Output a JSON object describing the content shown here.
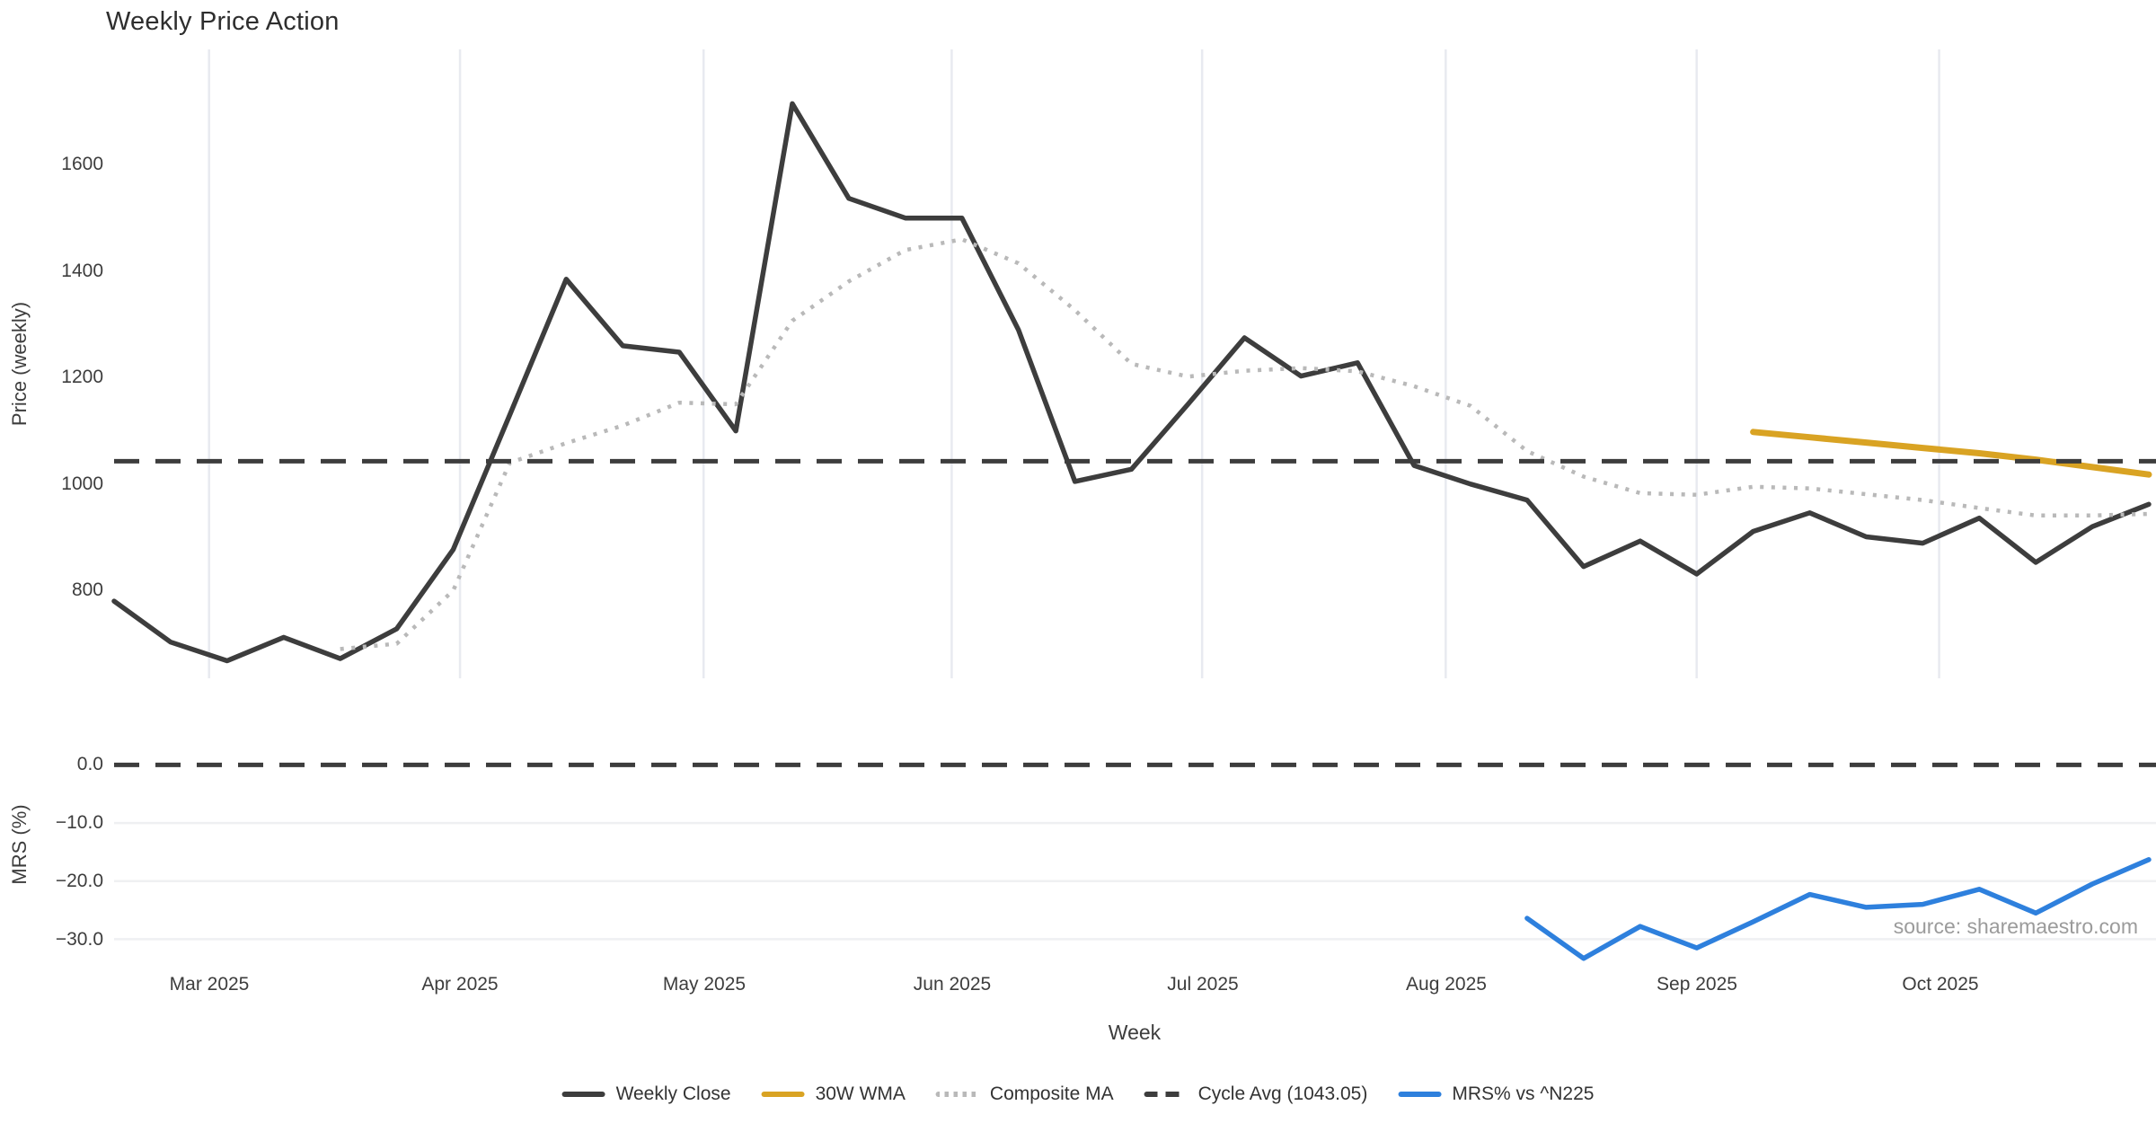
{
  "title": "Weekly Price Action",
  "source_note": "source: sharemaestro.com",
  "axis_titles": {
    "price": "Price (weekly)",
    "mrs": "MRS (%)",
    "x": "Week"
  },
  "price_ticks": [
    "1600",
    "1400",
    "1200",
    "1000",
    "800"
  ],
  "mrs_ticks": [
    "0.0",
    "−10.0",
    "−20.0",
    "−30.0"
  ],
  "month_ticks": [
    "Mar 2025",
    "Apr 2025",
    "May 2025",
    "Jun 2025",
    "Jul 2025",
    "Aug 2025",
    "Sep 2025",
    "Oct 2025"
  ],
  "legend": {
    "items": [
      {
        "label": "Weekly Close",
        "color": "#3d3d3d",
        "style": "solid"
      },
      {
        "label": "30W WMA",
        "color": "#d9a323",
        "style": "solid"
      },
      {
        "label": "Composite MA",
        "color": "#b9b9b9",
        "style": "dotted"
      },
      {
        "label": "Cycle Avg (1043.05)",
        "color": "#3d3d3d",
        "style": "dashed"
      },
      {
        "label": "MRS% vs ^N225",
        "color": "#2e80dd",
        "style": "solid"
      }
    ]
  },
  "colors": {
    "weekly_close": "#3d3d3d",
    "wma30": "#d9a323",
    "composite_ma": "#b9b9b9",
    "cycle_avg": "#3d3d3d",
    "mrs": "#2e80dd",
    "vgrid": "#e8eaf0",
    "hgrid": "#eff0f2",
    "text": "#3d3d3d",
    "source_text": "#9b9b9b"
  },
  "chart_data": [
    {
      "type": "line",
      "panel": "price",
      "ylabel": "Price (weekly)",
      "x_unit": "week_index",
      "n_weeks": 37,
      "ylim": [
        635,
        1817
      ],
      "yticks": [
        800,
        1000,
        1200,
        1400,
        1600
      ],
      "month_ticks": [
        {
          "label": "Mar 2025",
          "week": 1.68
        },
        {
          "label": "Apr 2025",
          "week": 6.12
        },
        {
          "label": "May 2025",
          "week": 10.43
        },
        {
          "label": "Jun 2025",
          "week": 14.82
        },
        {
          "label": "Jul 2025",
          "week": 19.25
        },
        {
          "label": "Aug 2025",
          "week": 23.56
        },
        {
          "label": "Sep 2025",
          "week": 28.0
        },
        {
          "label": "Oct 2025",
          "week": 32.29
        }
      ],
      "series": [
        {
          "name": "Weekly Close",
          "color": "#3d3d3d",
          "dash": "solid",
          "width": 5.5,
          "values": [
            780,
            703,
            668,
            712,
            672,
            728,
            877,
            1130,
            1385,
            1260,
            1248,
            1100,
            1715,
            1537,
            1500,
            1500,
            1290,
            1005,
            1028,
            1150,
            1275,
            1203,
            1228,
            1035,
            1000,
            970,
            845,
            893,
            831,
            911,
            946,
            901,
            889,
            936,
            853,
            920,
            962
          ]
        },
        {
          "name": "Composite MA",
          "color": "#b9b9b9",
          "dash": "dotted",
          "width": 4.5,
          "values": [
            null,
            null,
            null,
            null,
            690,
            700,
            800,
            1040,
            1077,
            1110,
            1153,
            1150,
            1307,
            1381,
            1440,
            1460,
            1415,
            1327,
            1226,
            1202,
            1213,
            1218,
            1212,
            1184,
            1147,
            1062,
            1014,
            983,
            980,
            995,
            992,
            981,
            970,
            955,
            941,
            941,
            944
          ]
        },
        {
          "name": "30W WMA",
          "color": "#d9a323",
          "dash": "solid",
          "width": 7,
          "values": [
            null,
            null,
            null,
            null,
            null,
            null,
            null,
            null,
            null,
            null,
            null,
            null,
            null,
            null,
            null,
            null,
            null,
            null,
            null,
            null,
            null,
            null,
            null,
            null,
            null,
            null,
            null,
            null,
            null,
            1098,
            1088,
            1078,
            1068,
            1058,
            1046,
            1032,
            1018
          ]
        },
        {
          "name": "Cycle Avg",
          "color": "#3d3d3d",
          "dash": "dashed",
          "width": 5,
          "constant": 1043.05
        }
      ]
    },
    {
      "type": "line",
      "panel": "mrs",
      "ylabel": "MRS (%)",
      "x_unit": "week_index",
      "n_weeks": 37,
      "ylim": [
        -33.8,
        6.4
      ],
      "yticks": [
        0,
        -10,
        -20,
        -30
      ],
      "series": [
        {
          "name": "MRS% vs ^N225",
          "color": "#2e80dd",
          "dash": "solid",
          "width": 5.5,
          "values": [
            null,
            null,
            null,
            null,
            null,
            null,
            null,
            null,
            null,
            null,
            null,
            null,
            null,
            null,
            null,
            null,
            null,
            null,
            null,
            null,
            null,
            null,
            null,
            null,
            null,
            -26.4,
            -33.3,
            -27.8,
            -31.5,
            -27.0,
            -22.3,
            -24.5,
            -24.0,
            -21.4,
            -25.5,
            -20.5,
            -16.3
          ]
        },
        {
          "name": "Zero Line",
          "color": "#3d3d3d",
          "dash": "dashed",
          "width": 5,
          "constant": 0
        }
      ]
    }
  ]
}
